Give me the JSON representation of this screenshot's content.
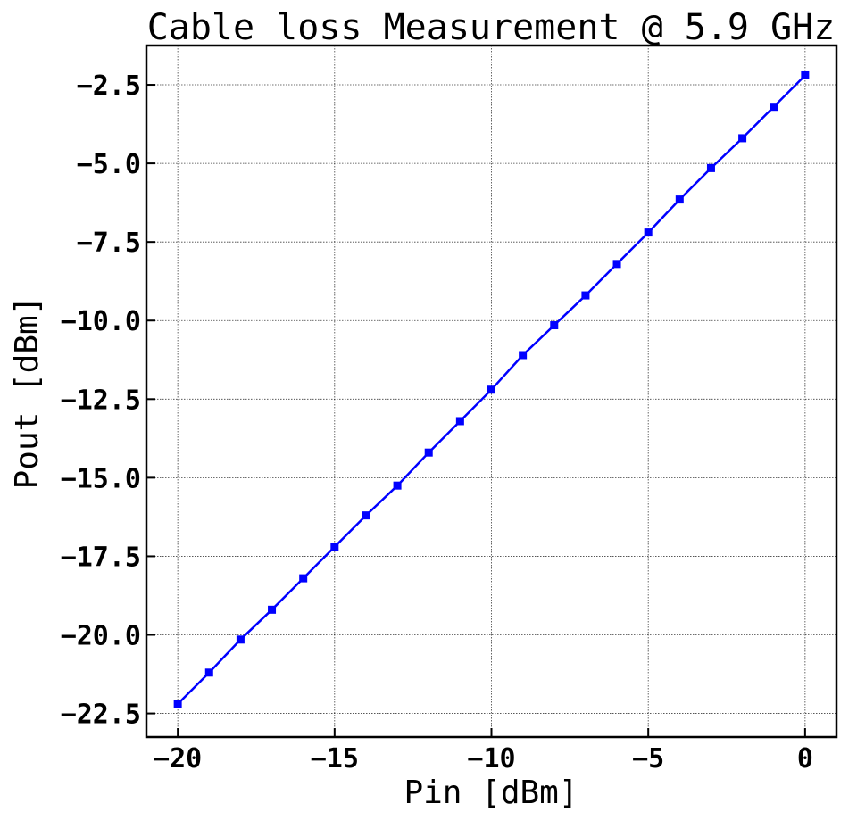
{
  "chart_data": {
    "type": "line",
    "title": "Cable loss Measurement @ 5.9 GHz",
    "xlabel": "Pin [dBm]",
    "ylabel": "Pout [dBm]",
    "xlim": [
      -21,
      1
    ],
    "ylim": [
      -23.25,
      -1.25
    ],
    "grid": true,
    "x_ticks": [
      -20,
      -15,
      -10,
      -5,
      0
    ],
    "x_tick_labels": [
      "−20",
      "−15",
      "−10",
      "−5",
      "0"
    ],
    "y_ticks": [
      -2.5,
      -5.0,
      -7.5,
      -10.0,
      -12.5,
      -15.0,
      -17.5,
      -20.0,
      -22.5
    ],
    "y_tick_labels": [
      "−2.5",
      "−5.0",
      "−7.5",
      "−10.0",
      "−12.5",
      "−15.0",
      "−17.5",
      "−20.0",
      "−22.5"
    ],
    "series": [
      {
        "color": "#0000ff",
        "marker": "square",
        "x": [
          -20,
          -19,
          -18,
          -17,
          -16,
          -15,
          -14,
          -13,
          -12,
          -11,
          -10,
          -9,
          -8,
          -7,
          -6,
          -5,
          -4,
          -3,
          -2,
          -1,
          0
        ],
        "y": [
          -22.2,
          -21.2,
          -20.15,
          -19.2,
          -18.2,
          -17.2,
          -16.2,
          -15.25,
          -14.2,
          -13.2,
          -12.2,
          -11.1,
          -10.15,
          -9.2,
          -8.2,
          -7.2,
          -6.15,
          -5.15,
          -4.2,
          -3.2,
          -2.2
        ]
      }
    ]
  }
}
